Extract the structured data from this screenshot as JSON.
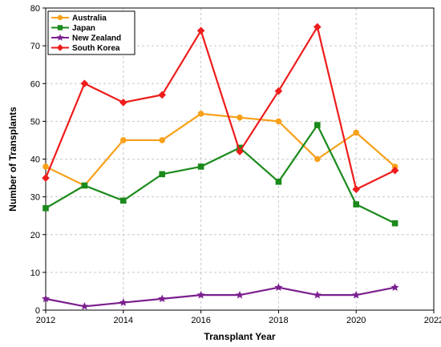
{
  "chart_data": {
    "type": "line",
    "title": "",
    "xlabel": "Transplant Year",
    "ylabel": "Number of Transplants",
    "xlim": [
      2012,
      2022
    ],
    "ylim": [
      0,
      80
    ],
    "x_ticks": [
      2012,
      2014,
      2016,
      2018,
      2020,
      2022
    ],
    "y_ticks": [
      0,
      10,
      20,
      30,
      40,
      50,
      60,
      70,
      80
    ],
    "x": [
      2012,
      2013,
      2014,
      2015,
      2016,
      2017,
      2018,
      2019,
      2020,
      2021
    ],
    "grid": "horizontal-dashed",
    "legend_position": "top-left",
    "series": [
      {
        "name": "Australia",
        "color": "#f7a11a",
        "marker": "circle",
        "values": [
          38,
          33,
          45,
          45,
          52,
          51,
          50,
          40,
          47,
          38
        ]
      },
      {
        "name": "Japan",
        "color": "#1b8a1b",
        "marker": "square",
        "values": [
          27,
          33,
          29,
          36,
          38,
          43,
          34,
          49,
          28,
          23
        ]
      },
      {
        "name": "New Zealand",
        "color": "#7b1f8f",
        "marker": "star",
        "values": [
          3,
          1,
          2,
          3,
          4,
          4,
          6,
          4,
          4,
          6
        ]
      },
      {
        "name": "South Korea",
        "color": "#ee1c1c",
        "marker": "diamond",
        "values": [
          35,
          60,
          55,
          57,
          74,
          42,
          58,
          75,
          32,
          37
        ]
      }
    ]
  }
}
